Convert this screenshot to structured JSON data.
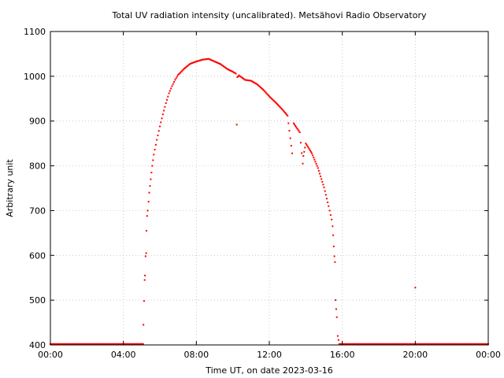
{
  "chart_data": {
    "type": "scatter",
    "title": "Total UV radiation intensity (uncalibrated). Metsähovi Radio Observatory",
    "xlabel": "Time UT, on date 2023-03-16",
    "ylabel": "Arbitrary unit",
    "xlim": [
      "00:00",
      "24:00"
    ],
    "ylim": [
      400,
      1100
    ],
    "x_ticks": [
      "00:00",
      "04:00",
      "08:00",
      "12:00",
      "16:00",
      "20:00",
      "00:00"
    ],
    "y_ticks": [
      "400",
      "500",
      "600",
      "700",
      "800",
      "900",
      "1000",
      "1100"
    ],
    "grid": true,
    "series": [
      {
        "color": "#ff0000",
        "points": [
          [
            "00:00",
            402
          ],
          [
            "05:00",
            402
          ],
          [
            "05:05",
            402
          ],
          [
            "05:06",
            445
          ],
          [
            "05:08",
            498
          ],
          [
            "05:10",
            545
          ],
          [
            "05:11",
            555
          ],
          [
            "05:13",
            598
          ],
          [
            "05:15",
            605
          ],
          [
            "05:16",
            655
          ],
          [
            "05:18",
            688
          ],
          [
            "05:20",
            700
          ],
          [
            "05:23",
            720
          ],
          [
            "05:25",
            740
          ],
          [
            "05:30",
            770
          ],
          [
            "05:35",
            800
          ],
          [
            "05:40",
            825
          ],
          [
            "05:50",
            858
          ],
          [
            "06:00",
            888
          ],
          [
            "06:10",
            915
          ],
          [
            "06:20",
            940
          ],
          [
            "06:30",
            962
          ],
          [
            "06:40",
            978
          ],
          [
            "06:50",
            992
          ],
          [
            "07:00",
            1003
          ],
          [
            "07:20",
            1017
          ],
          [
            "07:40",
            1028
          ],
          [
            "08:00",
            1033
          ],
          [
            "08:20",
            1037
          ],
          [
            "08:40",
            1039
          ],
          [
            "09:00",
            1033
          ],
          [
            "09:20",
            1027
          ],
          [
            "09:40",
            1017
          ],
          [
            "10:00",
            1010
          ],
          [
            "10:10",
            1006
          ],
          [
            "10:13",
            892
          ],
          [
            "10:15",
            998
          ],
          [
            "10:20",
            1002
          ],
          [
            "10:40",
            992
          ],
          [
            "11:00",
            990
          ],
          [
            "11:20",
            982
          ],
          [
            "11:40",
            970
          ],
          [
            "12:00",
            955
          ],
          [
            "12:20",
            942
          ],
          [
            "12:40",
            928
          ],
          [
            "13:00",
            912
          ],
          [
            "13:15",
            828
          ],
          [
            "13:20",
            895
          ],
          [
            "13:40",
            875
          ],
          [
            "13:50",
            805
          ],
          [
            "13:52",
            822
          ],
          [
            "14:00",
            850
          ],
          [
            "14:20",
            828
          ],
          [
            "14:40",
            795
          ],
          [
            "15:00",
            752
          ],
          [
            "15:15",
            710
          ],
          [
            "15:25",
            680
          ],
          [
            "15:28",
            665
          ],
          [
            "15:30",
            645
          ],
          [
            "15:32",
            620
          ],
          [
            "15:34",
            598
          ],
          [
            "15:36",
            585
          ],
          [
            "15:38",
            500
          ],
          [
            "15:40",
            480
          ],
          [
            "15:42",
            462
          ],
          [
            "15:45",
            420
          ],
          [
            "15:50",
            402
          ],
          [
            "19:58",
            402
          ],
          [
            "20:00",
            528
          ],
          [
            "20:02",
            402
          ],
          [
            "24:00",
            402
          ]
        ]
      }
    ]
  }
}
